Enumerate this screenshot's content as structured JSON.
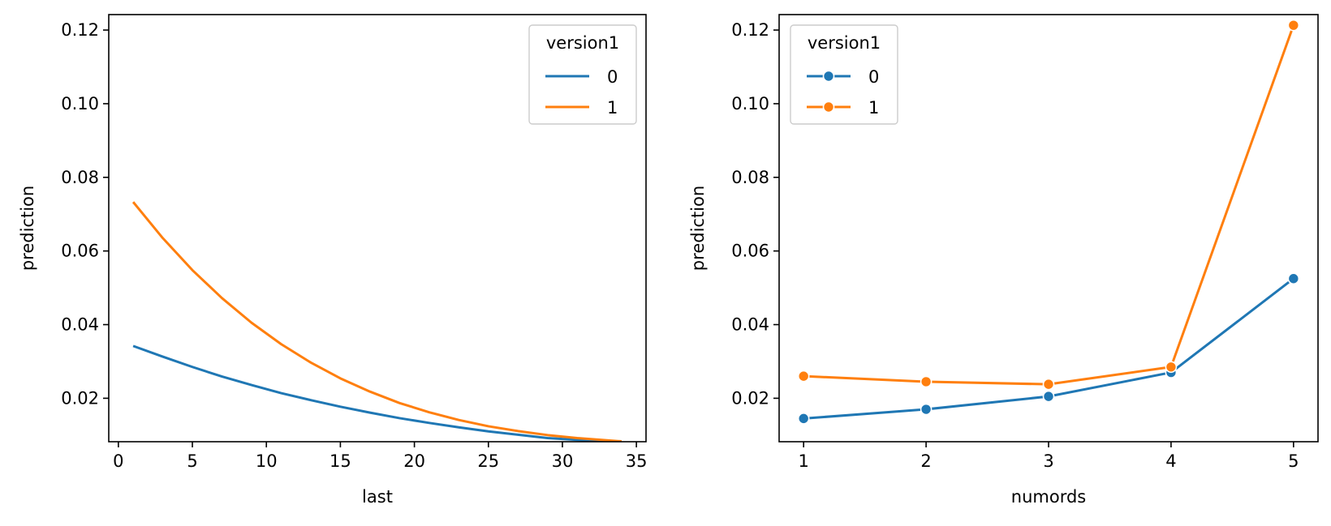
{
  "chart_data": [
    {
      "type": "line",
      "xlabel": "last",
      "ylabel": "prediction",
      "xlim": [
        -0.65,
        35.65
      ],
      "ylim": [
        0.0082,
        0.1242
      ],
      "xticks": [
        0,
        5,
        10,
        15,
        20,
        25,
        30,
        35
      ],
      "yticks": [
        0.02,
        0.04,
        0.06,
        0.08,
        0.1,
        0.12
      ],
      "ytick_format": 2,
      "grid": false,
      "markers": false,
      "legend": {
        "title": "version1",
        "placement": "upper right"
      },
      "x": [
        1,
        3,
        5,
        7,
        9,
        11,
        13,
        15,
        17,
        19,
        21,
        23,
        25,
        27,
        29,
        31,
        34
      ],
      "series": [
        {
          "name": "0",
          "color": "#1f77b4",
          "values": [
            0.0342,
            0.0313,
            0.0285,
            0.0259,
            0.0236,
            0.0214,
            0.0195,
            0.0177,
            0.0161,
            0.0146,
            0.0133,
            0.0121,
            0.011,
            0.0101,
            0.0092,
            0.0087,
            0.0082
          ]
        },
        {
          "name": "1",
          "color": "#ff7f0e",
          "values": [
            0.0733,
            0.0635,
            0.0548,
            0.0472,
            0.0405,
            0.0347,
            0.0297,
            0.0254,
            0.0218,
            0.0187,
            0.0162,
            0.0141,
            0.0124,
            0.0111,
            0.01,
            0.0092,
            0.0083
          ]
        }
      ]
    },
    {
      "type": "line",
      "xlabel": "numords",
      "ylabel": "prediction",
      "xlim": [
        0.8,
        5.2
      ],
      "ylim": [
        0.0082,
        0.1242
      ],
      "xticks": [
        1,
        2,
        3,
        4,
        5
      ],
      "yticks": [
        0.02,
        0.04,
        0.06,
        0.08,
        0.1,
        0.12
      ],
      "ytick_format": 2,
      "grid": false,
      "markers": true,
      "legend": {
        "title": "version1",
        "placement": "upper left"
      },
      "x": [
        1,
        2,
        3,
        4,
        5
      ],
      "series": [
        {
          "name": "0",
          "color": "#1f77b4",
          "values": [
            0.0145,
            0.017,
            0.0205,
            0.027,
            0.0525
          ]
        },
        {
          "name": "1",
          "color": "#ff7f0e",
          "values": [
            0.026,
            0.0245,
            0.0238,
            0.0285,
            0.1213
          ]
        }
      ]
    }
  ]
}
